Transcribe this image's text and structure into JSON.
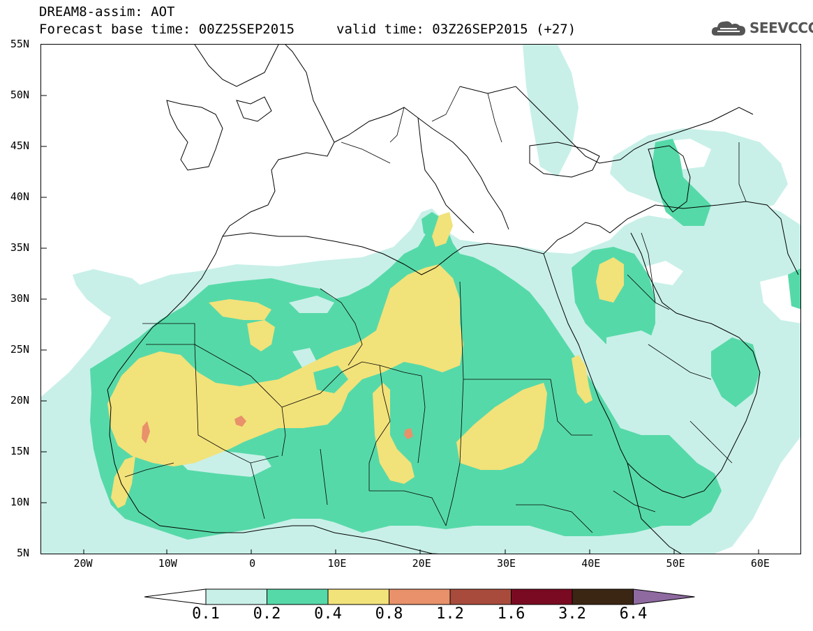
{
  "header": {
    "line1": "DREAM8-assim: AOT",
    "line2": "Forecast base time: 00Z25SEP2015",
    "valid": "valid time: 03Z26SEP2015 (+27)",
    "logo": "SEEVCCC",
    "logo_icon": "cloud-icon"
  },
  "axes": {
    "lat_ticks": [
      "55N",
      "50N",
      "45N",
      "40N",
      "35N",
      "30N",
      "25N",
      "20N",
      "15N",
      "10N",
      "5N"
    ],
    "lon_ticks": [
      "20W",
      "10W",
      "0",
      "10E",
      "20E",
      "30E",
      "40E",
      "50E",
      "60E"
    ]
  },
  "colorbar": {
    "labels": [
      "0.1",
      "0.2",
      "0.4",
      "0.8",
      "1.2",
      "1.6",
      "3.2",
      "6.4"
    ],
    "colors": [
      "#ffffff",
      "#c8f0e8",
      "#56d9a8",
      "#f2e27a",
      "#e8916a",
      "#a94b3c",
      "#7a0a22",
      "#3b2614",
      "#8e6aa0"
    ]
  },
  "palette": {
    "lightcyan": "#c8f0e8",
    "green": "#56d9a8",
    "yellow": "#f2e27a",
    "orange": "#e8916a"
  }
}
